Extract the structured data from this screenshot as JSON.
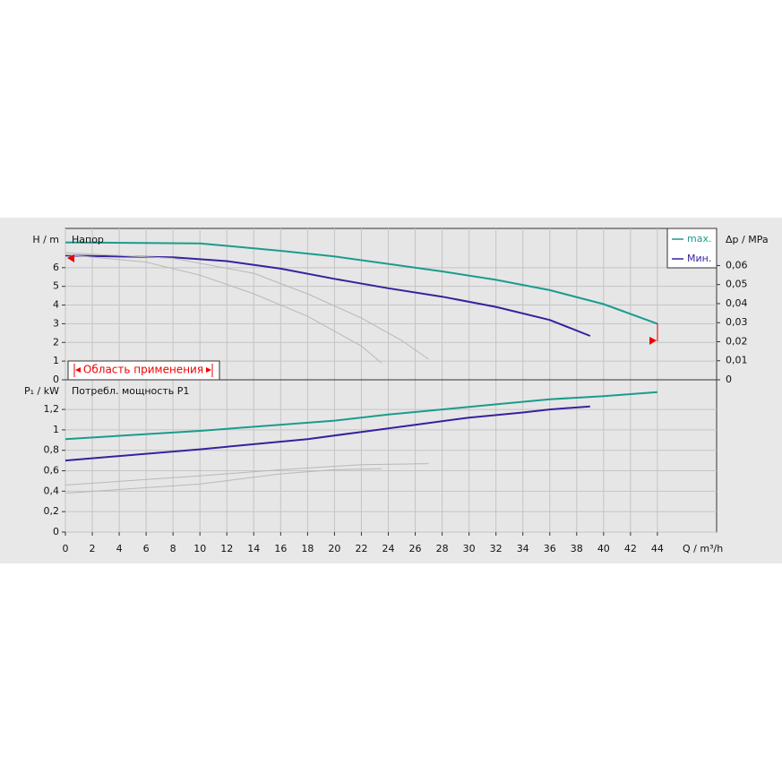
{
  "chart_data": [
    {
      "type": "line",
      "title": "Напор",
      "ylabel": "H / m",
      "y2label": "Δp / MPa",
      "annotation": "Область применения",
      "xlim": [
        0,
        48.4
      ],
      "ylim": [
        0,
        8.1
      ],
      "yticks": [
        0,
        1,
        2,
        3,
        4,
        5,
        6
      ],
      "y2lim": [
        0,
        0.0795
      ],
      "y2ticks": [
        0,
        {
          "value": 0.01,
          "label": "0,01"
        },
        {
          "value": 0.02,
          "label": "0,02"
        },
        {
          "value": 0.03,
          "label": "0,03"
        },
        {
          "value": 0.04,
          "label": "0,04"
        },
        {
          "value": 0.05,
          "label": "0,05"
        },
        {
          "value": 0.06,
          "label": "0,06"
        }
      ],
      "grid": true,
      "legend": "upper right",
      "series": [
        {
          "name": "max.",
          "color": "#1a9c8c",
          "x": [
            0,
            10,
            16,
            20,
            24,
            28,
            32,
            36,
            40,
            44
          ],
          "values": [
            7.35,
            7.3,
            6.9,
            6.6,
            6.2,
            5.8,
            5.35,
            4.8,
            4.05,
            3.0
          ]
        },
        {
          "name": "Мин.",
          "color": "#3a1f9e",
          "x": [
            0,
            8,
            12,
            16,
            20,
            24,
            28,
            32,
            36,
            39
          ],
          "values": [
            6.65,
            6.55,
            6.35,
            5.95,
            5.4,
            4.9,
            4.45,
            3.9,
            3.2,
            2.35
          ]
        },
        {
          "color": "#b8b8b8",
          "x": [
            0,
            6,
            10,
            14,
            18,
            22,
            23.5
          ],
          "values": [
            6.7,
            6.3,
            5.6,
            4.6,
            3.4,
            1.8,
            0.9
          ]
        },
        {
          "color": "#b8b8b8",
          "x": [
            0,
            8,
            14,
            18,
            22,
            25,
            27
          ],
          "values": [
            6.8,
            6.5,
            5.7,
            4.6,
            3.3,
            2.1,
            1.1
          ]
        }
      ]
    },
    {
      "type": "line",
      "title": "Потребл. мощность P1",
      "ylabel": "P₁ / kW",
      "xlabel": "Q / m³/h",
      "xlim": [
        0,
        48.4
      ],
      "xticks": [
        0,
        2,
        4,
        6,
        8,
        10,
        12,
        14,
        16,
        18,
        20,
        22,
        24,
        26,
        28,
        30,
        32,
        34,
        36,
        38,
        40,
        42,
        44
      ],
      "ylim": [
        0,
        1.49
      ],
      "yticks": [
        0,
        {
          "value": 0.2,
          "label": "0,2"
        },
        {
          "value": 0.4,
          "label": "0,4"
        },
        {
          "value": 0.6,
          "label": "0,6"
        },
        {
          "value": 0.8,
          "label": "0,8"
        },
        1,
        {
          "value": 1.2,
          "label": "1,2"
        }
      ],
      "grid": true,
      "series": [
        {
          "color": "#1a9c8c",
          "x": [
            0,
            10,
            20,
            24,
            28,
            32,
            36,
            40,
            44
          ],
          "values": [
            0.91,
            0.99,
            1.09,
            1.15,
            1.2,
            1.25,
            1.3,
            1.33,
            1.37
          ]
        },
        {
          "color": "#3a1f9e",
          "x": [
            0,
            10,
            18,
            22,
            26,
            30,
            34,
            36,
            39
          ],
          "values": [
            0.7,
            0.81,
            0.91,
            0.98,
            1.05,
            1.12,
            1.17,
            1.2,
            1.23
          ]
        },
        {
          "color": "#b8b8b8",
          "x": [
            0,
            10,
            16,
            20,
            23.5
          ],
          "values": [
            0.38,
            0.47,
            0.57,
            0.61,
            0.62
          ]
        },
        {
          "color": "#b8b8b8",
          "x": [
            0,
            10,
            16,
            22,
            27
          ],
          "values": [
            0.46,
            0.55,
            0.61,
            0.66,
            0.67
          ]
        }
      ]
    }
  ]
}
